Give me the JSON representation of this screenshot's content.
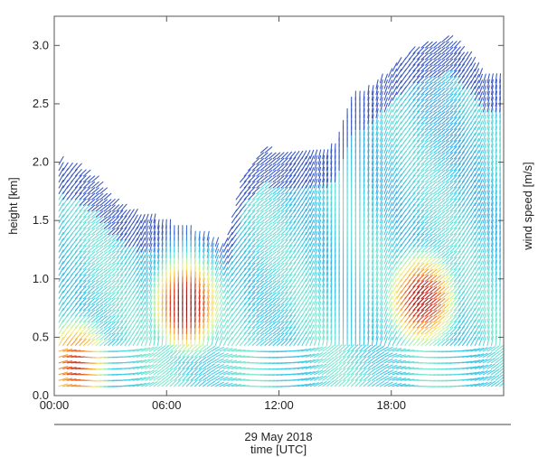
{
  "chart_data": {
    "type": "heatmap",
    "subtype": "wind-barbs",
    "title": "",
    "xlabel": "time [UTC]",
    "date_label": "29 May 2018",
    "ylabel": "height [km]",
    "colorbar_label": "wind speed [m/s]",
    "xlim": [
      "00:00",
      "24:00"
    ],
    "ylim": [
      0,
      3.25
    ],
    "x_ticks": [
      "00:00",
      "06:00",
      "12:00",
      "18:00"
    ],
    "y_ticks": [
      "0.0",
      "0.5",
      "1.0",
      "1.5",
      "2.0",
      "2.5",
      "3.0"
    ],
    "grid": false,
    "colormap": [
      "#3a2a9a",
      "#3d6fd6",
      "#3cc8e8",
      "#8ff0c8",
      "#f7f27a",
      "#f6a23c",
      "#d7301f",
      "#8b1010"
    ],
    "data_top_height_km": [
      {
        "time": "00:00",
        "height": 2.0
      },
      {
        "time": "01:00",
        "height": 1.95
      },
      {
        "time": "02:00",
        "height": 1.85
      },
      {
        "time": "03:00",
        "height": 1.65
      },
      {
        "time": "04:00",
        "height": 1.55
      },
      {
        "time": "05:00",
        "height": 1.5
      },
      {
        "time": "06:00",
        "height": 1.45
      },
      {
        "time": "07:00",
        "height": 1.4
      },
      {
        "time": "08:00",
        "height": 1.35
      },
      {
        "time": "09:00",
        "height": 1.25
      },
      {
        "time": "10:00",
        "height": 1.9
      },
      {
        "time": "11:00",
        "height": 2.1
      },
      {
        "time": "12:00",
        "height": 2.05
      },
      {
        "time": "13:00",
        "height": 2.05
      },
      {
        "time": "14:00",
        "height": 2.05
      },
      {
        "time": "15:00",
        "height": 2.1
      },
      {
        "time": "16:00",
        "height": 2.55
      },
      {
        "time": "17:00",
        "height": 2.6
      },
      {
        "time": "18:00",
        "height": 2.8
      },
      {
        "time": "19:00",
        "height": 2.95
      },
      {
        "time": "20:00",
        "height": 3.0
      },
      {
        "time": "21:00",
        "height": 3.05
      },
      {
        "time": "22:00",
        "height": 2.9
      },
      {
        "time": "23:00",
        "height": 2.7
      }
    ],
    "wind_speed_maxima": [
      {
        "time": "07:00",
        "height": 0.75,
        "level": 1.0
      },
      {
        "time": "19:30",
        "height": 0.8,
        "level": 0.95
      },
      {
        "time": "01:00",
        "height": 0.25,
        "level": 0.85
      }
    ]
  }
}
